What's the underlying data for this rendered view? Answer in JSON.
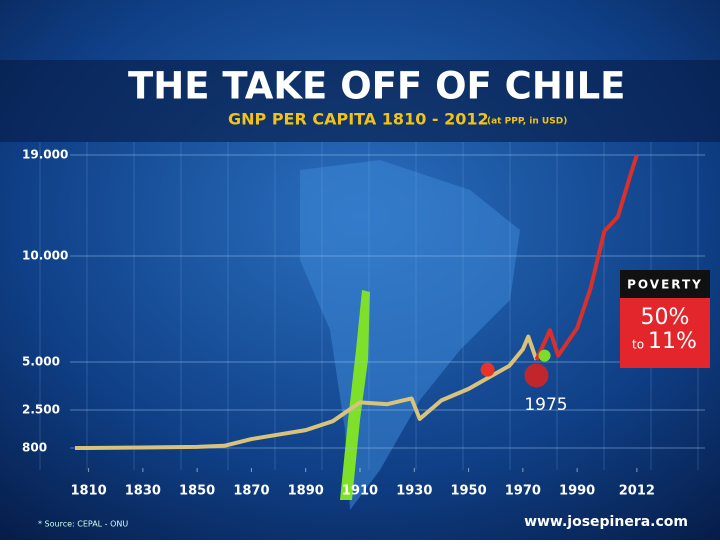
{
  "chart_data": {
    "type": "line",
    "title": "THE TAKE OFF OF CHILE",
    "subtitle": "GNP PER CAPITA 1810 - 2012",
    "subtitle_note": "(at PPP, in USD)",
    "xlim": [
      1805,
      2015
    ],
    "xticks": [
      1810,
      1830,
      1850,
      1870,
      1890,
      1910,
      1930,
      1950,
      1970,
      1990,
      2012
    ],
    "ylim": [
      800,
      19000
    ],
    "yticks": [
      {
        "value": 800,
        "label": "800"
      },
      {
        "value": 2500,
        "label": "2.500"
      },
      {
        "value": 5000,
        "label": "5.000"
      },
      {
        "value": 10000,
        "label": "10.000"
      },
      {
        "value": 19000,
        "label": "19.000"
      }
    ],
    "grid": true,
    "series": [
      {
        "color": "#d9c27a",
        "x": [
          1805,
          1810,
          1830,
          1850,
          1860,
          1870,
          1880,
          1890,
          1900,
          1910,
          1920,
          1929,
          1932,
          1940,
          1950,
          1960,
          1965,
          1970,
          1972,
          1975
        ],
        "values": [
          800,
          800,
          820,
          850,
          900,
          1200,
          1400,
          1600,
          2000,
          2900,
          2800,
          3100,
          2100,
          3000,
          3600,
          4400,
          4800,
          5600,
          6200,
          5100
        ]
      },
      {
        "color": "#d9302b",
        "x": [
          1975,
          1980,
          1983,
          1990,
          1995,
          2000,
          2005,
          2010,
          2012
        ],
        "values": [
          5100,
          6500,
          5300,
          6600,
          8500,
          12200,
          13500,
          17500,
          19000
        ]
      }
    ],
    "markers": [
      {
        "x": 1957,
        "y": 4600,
        "color": "#e8322b",
        "size": 7
      },
      {
        "x": 1975,
        "y": 4300,
        "color": "#c0262b",
        "size": 12
      },
      {
        "x": 1978,
        "y": 5300,
        "color": "#7ddc2a",
        "size": 6
      }
    ],
    "annotation": "1975",
    "poverty": {
      "title": "POVERTY",
      "from": "50%",
      "to_word": "to",
      "to": "11%"
    },
    "source": "* Source: CEPAL - ONU",
    "website": "www.josepinera.com"
  }
}
